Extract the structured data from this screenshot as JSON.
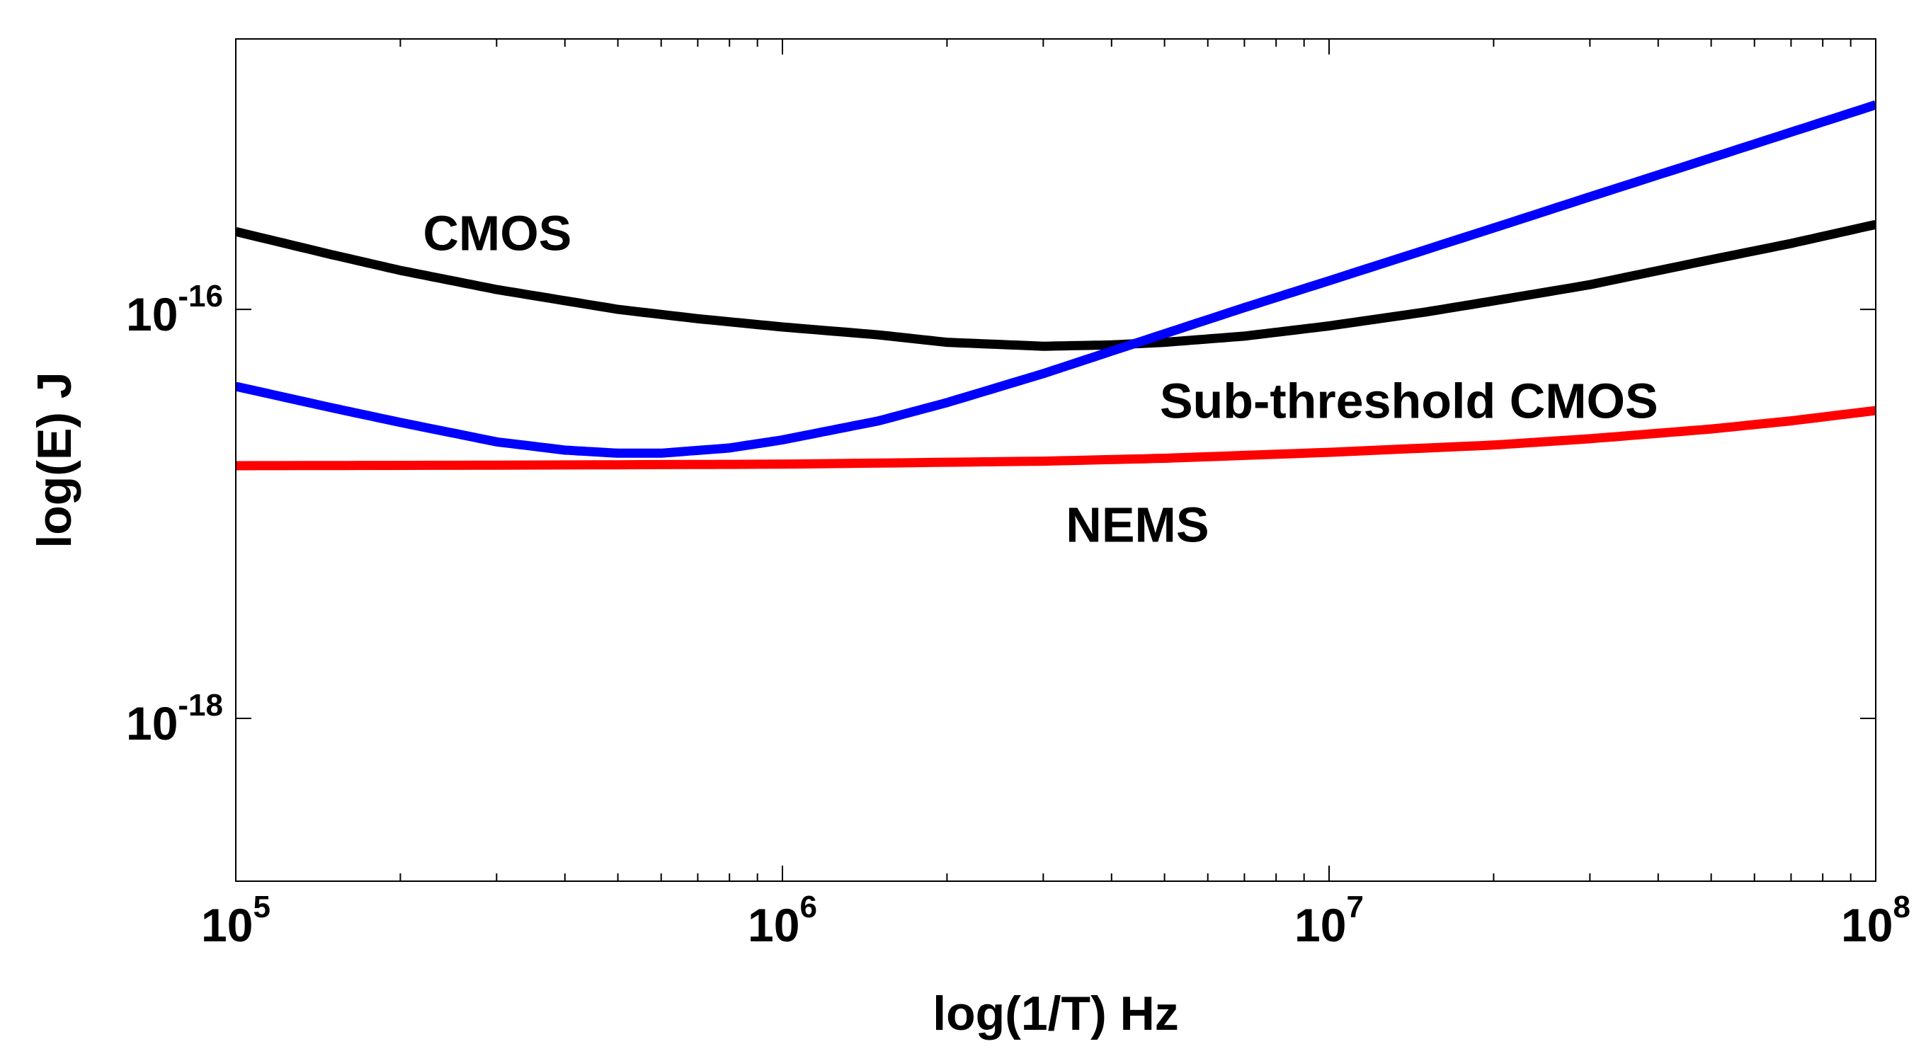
{
  "chart_data": {
    "type": "line",
    "title": "",
    "xlabel": "log(1/T) Hz",
    "ylabel": "log(E) J",
    "xscale": "log",
    "yscale": "log",
    "xlim": [
      100000,
      100000000
    ],
    "ylim": [
      1.6e-19,
      2.1e-15
    ],
    "xticks": [
      {
        "value": 100000,
        "base": "10",
        "exp": "5"
      },
      {
        "value": 1000000,
        "base": "10",
        "exp": "6"
      },
      {
        "value": 10000000,
        "base": "10",
        "exp": "7"
      },
      {
        "value": 100000000,
        "base": "10",
        "exp": "8"
      }
    ],
    "yticks": [
      {
        "value": 1e-16,
        "base": "10",
        "exp": "-16"
      },
      {
        "value": 1e-18,
        "base": "10",
        "exp": "-18"
      }
    ],
    "grid": false,
    "series": [
      {
        "name": "CMOS",
        "color": "#000000",
        "x": [
          100000,
          150000,
          200000,
          300000,
          500000,
          700000,
          1000000,
          1500000,
          2000000,
          3000000,
          4000000,
          5000000,
          7000000,
          10000000,
          15000000,
          20000000,
          30000000,
          50000000,
          70000000,
          100000000
        ],
        "y": [
          2.4e-16,
          1.85e-16,
          1.55e-16,
          1.25e-16,
          1e-16,
          9e-17,
          8.2e-17,
          7.5e-17,
          6.9e-17,
          6.6e-17,
          6.7e-17,
          6.9e-17,
          7.4e-17,
          8.3e-17,
          9.7e-17,
          1.1e-16,
          1.32e-16,
          1.75e-16,
          2.1e-16,
          2.6e-16
        ]
      },
      {
        "name": "Sub-threshold CMOS",
        "color": "#0000ff",
        "x": [
          100000,
          150000,
          200000,
          300000,
          400000,
          500000,
          600000,
          800000,
          1000000,
          1500000,
          2000000,
          3000000,
          5000000,
          7000000,
          10000000,
          20000000,
          30000000,
          50000000,
          100000000
        ],
        "y": [
          4.2e-17,
          3.3e-17,
          2.8e-17,
          2.25e-17,
          2.05e-17,
          1.98e-17,
          1.98e-17,
          2.1e-17,
          2.3e-17,
          2.85e-17,
          3.5e-17,
          4.85e-17,
          7.6e-17,
          1.02e-16,
          1.38e-16,
          2.5e-16,
          3.55e-16,
          5.5e-16,
          1e-15
        ]
      },
      {
        "name": "NEMS",
        "color": "#ff0000",
        "x": [
          100000,
          300000,
          1000000,
          3000000,
          5000000,
          10000000,
          20000000,
          30000000,
          50000000,
          70000000,
          100000000
        ],
        "y": [
          1.72e-17,
          1.73e-17,
          1.75e-17,
          1.81e-17,
          1.87e-17,
          2e-17,
          2.17e-17,
          2.33e-17,
          2.6e-17,
          2.85e-17,
          3.2e-17
        ]
      }
    ],
    "annotations": [
      {
        "text": "CMOS",
        "x": 220000,
        "y": 1.95e-16
      },
      {
        "text": "Sub-threshold CMOS",
        "x": 4900000,
        "y": 2.95e-17
      },
      {
        "text": "NEMS",
        "x": 3300000,
        "y": 7.3e-18
      }
    ]
  }
}
